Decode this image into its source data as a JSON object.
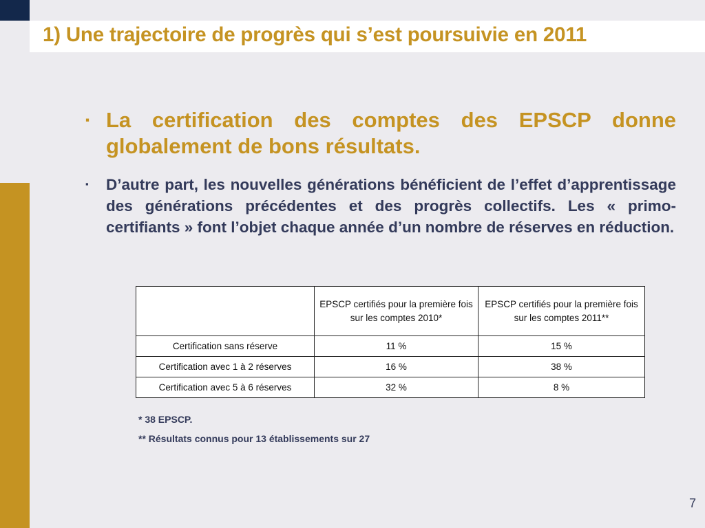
{
  "slide": {
    "title": "1) Une trajectoire de progrès qui s’est poursuivie en 2011",
    "bullets": [
      "La certification des comptes des EPSCP donne globalement de bons résultats.",
      "D’autre part, les nouvelles générations bénéficient de l’effet d’apprentissage des générations précédentes et des progrès collectifs. Les « primo-certifiants » font l’objet chaque année d’un nombre de réserves en réduction."
    ],
    "bullet_markers": [
      "▪",
      "▪"
    ],
    "table": {
      "headers": [
        "",
        "EPSCP certifiés pour la première fois sur les comptes 2010*",
        "EPSCP certifiés pour la première fois sur les comptes 2011**"
      ],
      "rows": [
        [
          "Certification sans réserve",
          "11 %",
          "15 %"
        ],
        [
          "Certification avec 1 à 2 réserves",
          "16 %",
          "38 %"
        ],
        [
          "Certification avec 5 à 6 réserves",
          "32 %",
          "8 %"
        ]
      ]
    },
    "footnotes": [
      "* 38 EPSCP.",
      "** Résultats connus pour 13 établissements sur 27"
    ],
    "page_number": "7"
  },
  "colors": {
    "accent_gold": "#c59322",
    "navy": "#13284b",
    "body_text": "#333a5a",
    "background": "#ecebef"
  }
}
